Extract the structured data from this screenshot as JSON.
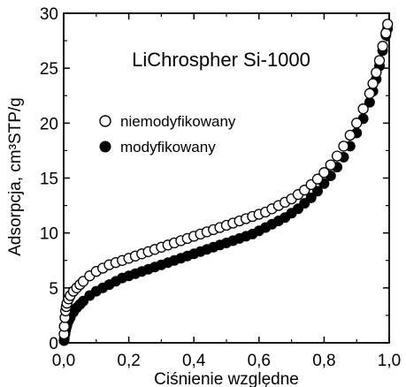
{
  "chart_data": {
    "type": "scatter",
    "title": "LiChrospher Si-1000",
    "xlabel": "Ciśnienie względne",
    "ylabel": "Adsorpcja, cm³STP/g",
    "xlim": [
      0,
      1
    ],
    "ylim": [
      0,
      30
    ],
    "x_ticks": [
      "0,0",
      "0,2",
      "0,4",
      "0,6",
      "0,8",
      "1,0"
    ],
    "y_ticks": [
      "0",
      "5",
      "10",
      "15",
      "20",
      "25",
      "30"
    ],
    "grid": false,
    "legend_position": "left",
    "series": [
      {
        "name": "niemodyfikowany",
        "marker": "open-circle",
        "color": "#000000",
        "x": [
          0.001,
          0.002,
          0.004,
          0.006,
          0.008,
          0.01,
          0.015,
          0.02,
          0.03,
          0.04,
          0.05,
          0.06,
          0.08,
          0.1,
          0.12,
          0.14,
          0.16,
          0.18,
          0.2,
          0.22,
          0.24,
          0.26,
          0.28,
          0.3,
          0.32,
          0.34,
          0.36,
          0.38,
          0.4,
          0.42,
          0.44,
          0.46,
          0.48,
          0.5,
          0.52,
          0.54,
          0.56,
          0.58,
          0.6,
          0.62,
          0.64,
          0.66,
          0.68,
          0.7,
          0.72,
          0.74,
          0.76,
          0.78,
          0.8,
          0.82,
          0.84,
          0.86,
          0.88,
          0.9,
          0.92,
          0.94,
          0.95,
          0.96,
          0.97,
          0.98,
          0.99,
          0.995
        ],
        "y": [
          0.8,
          1.5,
          2.3,
          2.9,
          3.3,
          3.6,
          4.0,
          4.3,
          4.7,
          5.0,
          5.3,
          5.6,
          6.1,
          6.5,
          6.8,
          7.1,
          7.3,
          7.5,
          7.7,
          7.9,
          8.1,
          8.3,
          8.5,
          8.7,
          8.9,
          9.1,
          9.3,
          9.5,
          9.7,
          9.9,
          10.1,
          10.3,
          10.5,
          10.7,
          10.9,
          11.1,
          11.3,
          11.5,
          11.7,
          11.9,
          12.2,
          12.5,
          12.8,
          13.1,
          13.5,
          13.9,
          14.4,
          14.9,
          15.5,
          16.2,
          17.0,
          17.9,
          18.9,
          20.0,
          21.3,
          22.7,
          23.6,
          24.6,
          25.7,
          27.0,
          28.2,
          29.0
        ]
      },
      {
        "name": "modyfikowany",
        "marker": "filled-circle",
        "color": "#000000",
        "x": [
          0.001,
          0.002,
          0.004,
          0.006,
          0.008,
          0.01,
          0.015,
          0.02,
          0.03,
          0.04,
          0.05,
          0.06,
          0.08,
          0.1,
          0.12,
          0.14,
          0.16,
          0.18,
          0.2,
          0.22,
          0.24,
          0.26,
          0.28,
          0.3,
          0.32,
          0.34,
          0.36,
          0.38,
          0.4,
          0.42,
          0.44,
          0.46,
          0.48,
          0.5,
          0.52,
          0.54,
          0.56,
          0.58,
          0.6,
          0.62,
          0.64,
          0.66,
          0.68,
          0.7,
          0.72,
          0.74,
          0.76,
          0.78,
          0.8,
          0.82,
          0.84,
          0.86,
          0.88,
          0.9,
          0.92,
          0.94,
          0.95,
          0.96,
          0.97,
          0.98,
          0.99,
          0.995
        ],
        "y": [
          0.2,
          0.4,
          0.8,
          1.1,
          1.4,
          1.6,
          2.0,
          2.3,
          2.8,
          3.2,
          3.5,
          3.8,
          4.3,
          4.7,
          5.0,
          5.3,
          5.6,
          5.9,
          6.1,
          6.3,
          6.5,
          6.7,
          6.9,
          7.1,
          7.3,
          7.5,
          7.7,
          7.9,
          8.1,
          8.3,
          8.5,
          8.7,
          8.9,
          9.1,
          9.3,
          9.5,
          9.7,
          9.9,
          10.2,
          10.5,
          10.8,
          11.1,
          11.4,
          11.8,
          12.2,
          12.7,
          13.2,
          13.8,
          14.5,
          15.2,
          16.0,
          16.9,
          17.9,
          19.1,
          20.4,
          21.9,
          22.9,
          24.0,
          25.2,
          26.6,
          28.0,
          28.6
        ]
      }
    ]
  }
}
